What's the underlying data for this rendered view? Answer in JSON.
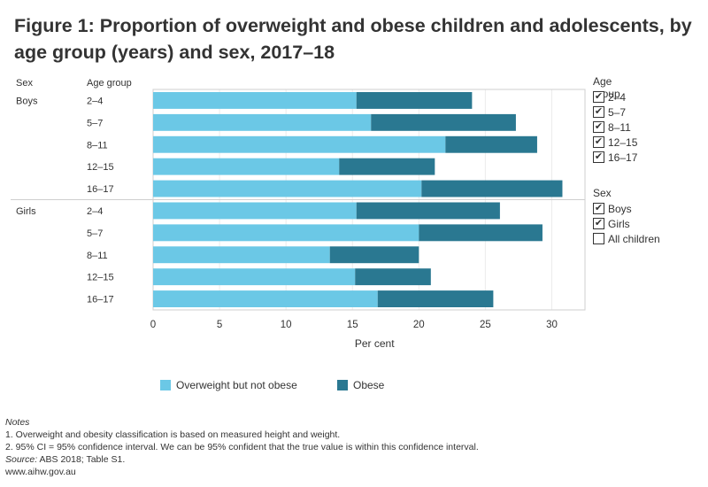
{
  "title": "Figure 1: Proportion of overweight and obese children and adolescents, by age group (years) and sex, 2017–18",
  "colors": {
    "overweight": "#6BC8E6",
    "obese": "#2A7891"
  },
  "chart_data": {
    "type": "bar",
    "orientation": "horizontal",
    "stacked": true,
    "row_headers": {
      "sex": "Sex",
      "age": "Age group"
    },
    "groups": [
      {
        "sex": "Boys",
        "age": [
          "2–4",
          "5–7",
          "8–11",
          "12–15",
          "16–17"
        ]
      },
      {
        "sex": "Girls",
        "age": [
          "2–4",
          "5–7",
          "8–11",
          "12–15",
          "16–17"
        ]
      }
    ],
    "series": [
      {
        "name": "Overweight but not obese",
        "values": [
          15.3,
          16.4,
          22.0,
          14.0,
          20.2,
          15.3,
          20.0,
          13.3,
          15.2,
          16.9
        ]
      },
      {
        "name": "Obese",
        "values": [
          8.7,
          10.9,
          6.9,
          7.2,
          10.6,
          10.8,
          9.3,
          6.7,
          5.7,
          8.7
        ]
      }
    ],
    "xlabel": "Per cent",
    "xlim": [
      0,
      32.5
    ],
    "xticks": [
      0,
      5,
      10,
      15,
      20,
      25,
      30
    ],
    "grid": true
  },
  "filters": {
    "age_group": {
      "title": "Age group",
      "options": [
        {
          "label": "2–4",
          "checked": true
        },
        {
          "label": "5–7",
          "checked": true
        },
        {
          "label": "8–11",
          "checked": true
        },
        {
          "label": "12–15",
          "checked": true
        },
        {
          "label": "16–17",
          "checked": true
        }
      ]
    },
    "sex": {
      "title": "Sex",
      "options": [
        {
          "label": "Boys",
          "checked": true
        },
        {
          "label": "Girls",
          "checked": true
        },
        {
          "label": "All children",
          "checked": false
        }
      ]
    }
  },
  "legend": {
    "overweight": "Overweight but not obese",
    "obese": "Obese"
  },
  "notes": {
    "heading": "Notes",
    "lines": [
      "1. Overweight and obesity classification is based on measured height and weight.",
      "2. 95% CI = 95% confidence interval. We can be 95% confident that the true value is within this confidence interval."
    ],
    "source_label": "Source:",
    "source_text": " ABS 2018; Table S1.",
    "url": "www.aihw.gov.au"
  },
  "check_glyph": "✔"
}
